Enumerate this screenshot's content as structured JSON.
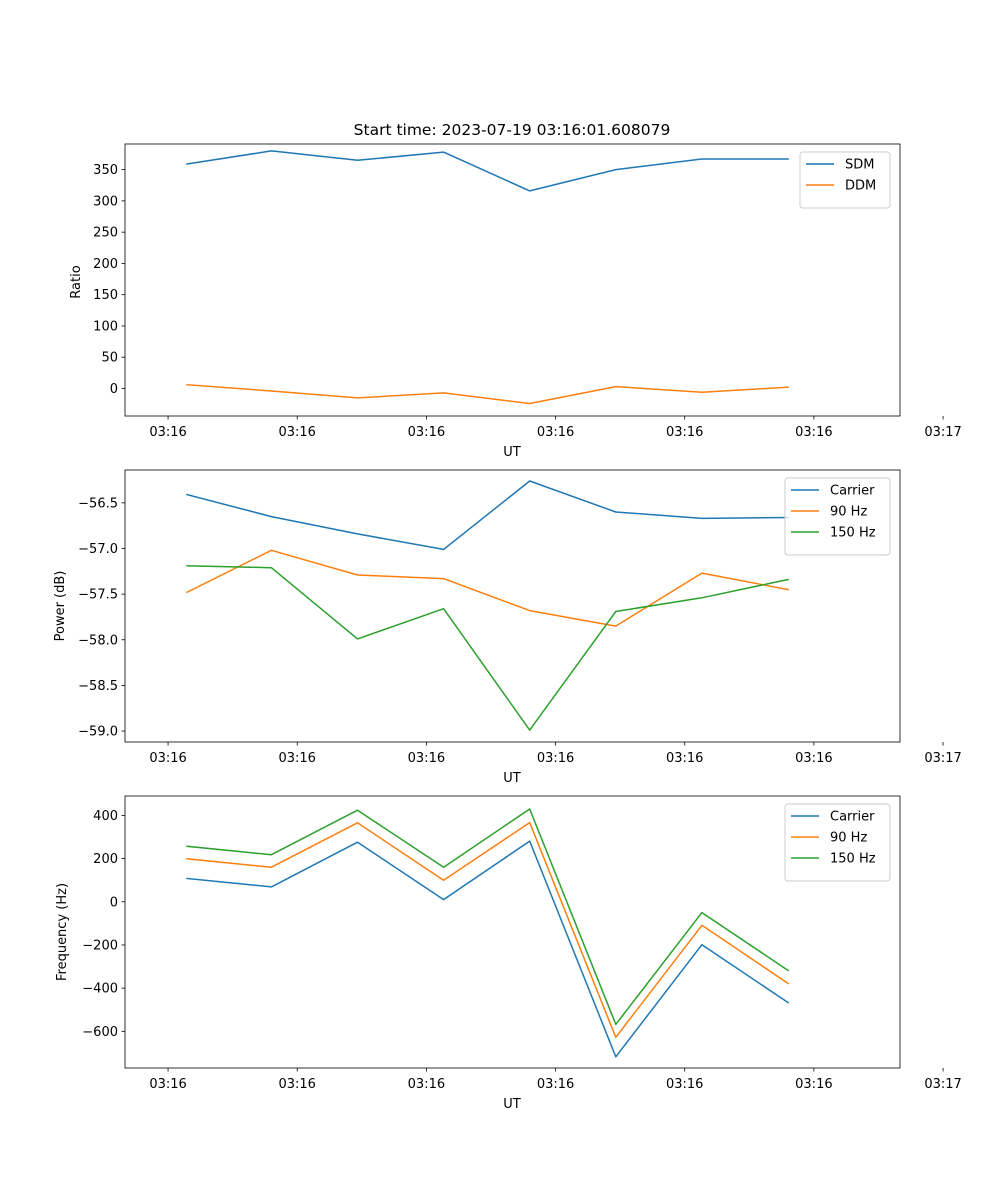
{
  "chart_data": [
    {
      "type": "line",
      "title": "Start time: 2023-07-19 03:16:01.608079",
      "xlabel": "UT",
      "ylabel": "Ratio",
      "xlim": [
        -0.5,
        8.5
      ],
      "ylim": [
        -44,
        391
      ],
      "x": [
        0.22,
        1.2,
        2.2,
        3.2,
        4.2,
        5.2,
        6.2,
        7.2
      ],
      "xticks": [
        0,
        1.5,
        3,
        4.5,
        6,
        7.5,
        9
      ],
      "xtick_labels": [
        "03:16",
        "03:16",
        "03:16",
        "03:16",
        "03:16",
        "03:16",
        "03:17"
      ],
      "yticks": [
        0,
        50,
        100,
        150,
        200,
        250,
        300,
        350
      ],
      "ytick_labels": [
        "0",
        "50",
        "100",
        "150",
        "200",
        "250",
        "300",
        "350"
      ],
      "legend_position": "top-right",
      "grid": false,
      "series": [
        {
          "name": "SDM",
          "color": "#1f77b4",
          "values": [
            359,
            380,
            365,
            378,
            316,
            350,
            367,
            367
          ]
        },
        {
          "name": "DDM",
          "color": "#ff7f0e",
          "values": [
            6,
            -4,
            -15,
            -7,
            -24,
            3,
            -6,
            2
          ]
        }
      ]
    },
    {
      "type": "line",
      "title": "",
      "xlabel": "UT",
      "ylabel": "Power (dB)",
      "xlim": [
        -0.5,
        8.5
      ],
      "ylim": [
        -59.12,
        -56.14
      ],
      "x": [
        0.22,
        1.2,
        2.2,
        3.2,
        4.2,
        5.2,
        6.2,
        7.2
      ],
      "xticks": [
        0,
        1.5,
        3,
        4.5,
        6,
        7.5,
        9
      ],
      "xtick_labels": [
        "03:16",
        "03:16",
        "03:16",
        "03:16",
        "03:16",
        "03:16",
        "03:17"
      ],
      "yticks": [
        -59.0,
        -58.5,
        -58.0,
        -57.5,
        -57.0,
        -56.5
      ],
      "ytick_labels": [
        "−59.0",
        "−58.5",
        "−58.0",
        "−57.5",
        "−57.0",
        "−56.5"
      ],
      "legend_position": "top-right",
      "grid": false,
      "series": [
        {
          "name": "Carrier",
          "color": "#1f77b4",
          "values": [
            -56.41,
            -56.65,
            -56.84,
            -57.01,
            -56.26,
            -56.6,
            -56.67,
            -56.66
          ]
        },
        {
          "name": "90 Hz",
          "color": "#ff7f0e",
          "values": [
            -57.48,
            -57.02,
            -57.29,
            -57.33,
            -57.68,
            -57.85,
            -57.27,
            -57.45
          ]
        },
        {
          "name": "150 Hz",
          "color": "#2ca02c",
          "values": [
            -57.19,
            -57.21,
            -57.99,
            -57.66,
            -58.99,
            -57.69,
            -57.54,
            -57.34
          ]
        }
      ]
    },
    {
      "type": "line",
      "title": "",
      "xlabel": "UT",
      "ylabel": "Frequency (Hz)",
      "xlim": [
        -0.5,
        8.5
      ],
      "ylim": [
        -770,
        490
      ],
      "x": [
        0.22,
        1.2,
        2.2,
        3.2,
        4.2,
        5.2,
        6.2,
        7.2
      ],
      "xticks": [
        0,
        1.5,
        3,
        4.5,
        6,
        7.5,
        9
      ],
      "xtick_labels": [
        "03:16",
        "03:16",
        "03:16",
        "03:16",
        "03:16",
        "03:16",
        "03:17"
      ],
      "yticks": [
        -600,
        -400,
        -200,
        0,
        200,
        400
      ],
      "ytick_labels": [
        "−600",
        "−400",
        "−200",
        "0",
        "200",
        "400"
      ],
      "legend_position": "top-right",
      "grid": false,
      "series": [
        {
          "name": "Carrier",
          "color": "#1f77b4",
          "values": [
            108,
            69,
            276,
            10,
            281,
            -718,
            -199,
            -467
          ]
        },
        {
          "name": "90 Hz",
          "color": "#ff7f0e",
          "values": [
            199,
            160,
            366,
            100,
            367,
            -628,
            -109,
            -378
          ]
        },
        {
          "name": "150 Hz",
          "color": "#2ca02c",
          "values": [
            257,
            218,
            424,
            160,
            430,
            -568,
            -50,
            -318
          ]
        }
      ]
    }
  ]
}
